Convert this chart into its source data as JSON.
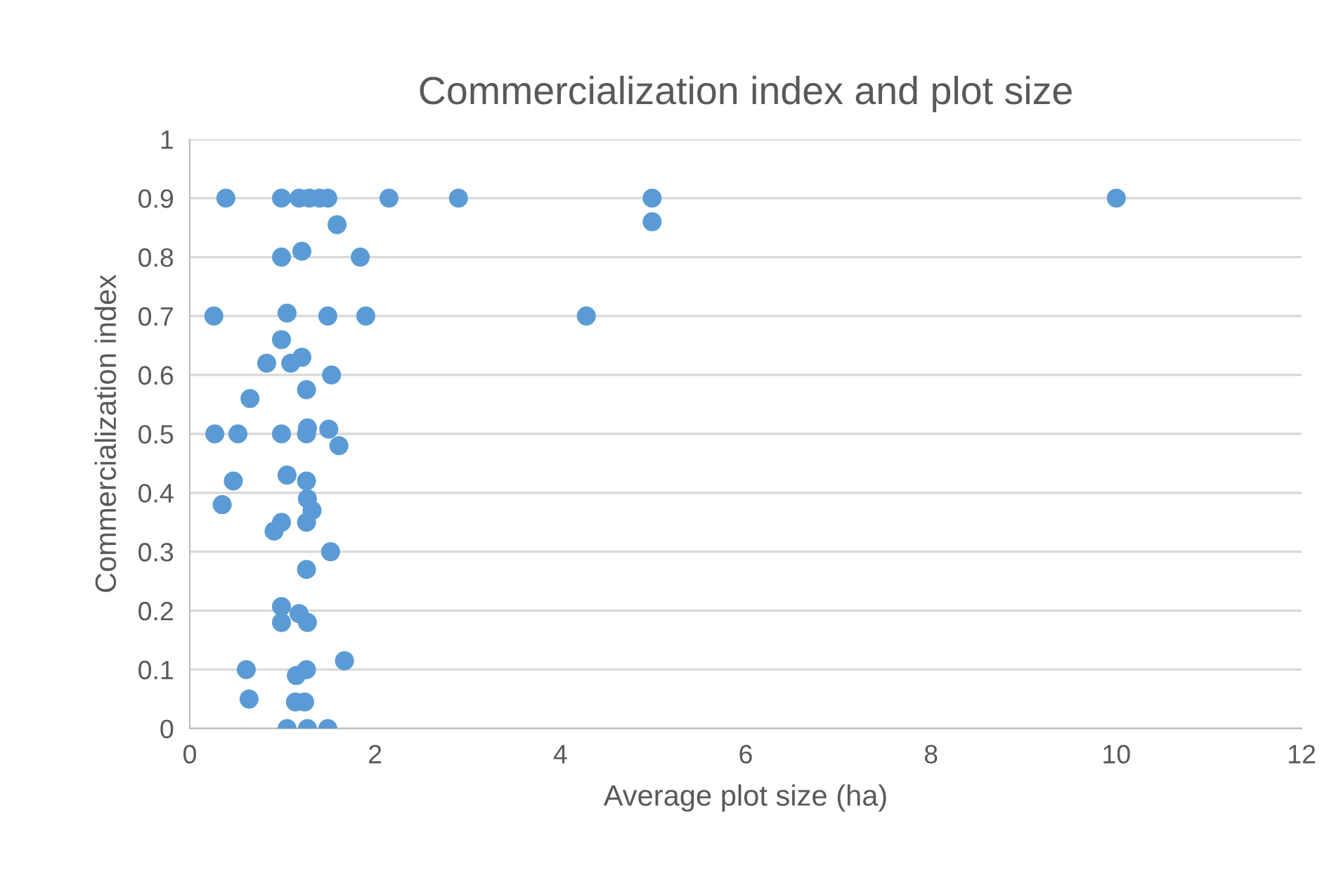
{
  "chart_data": {
    "type": "scatter",
    "title": "Commercialization index and plot size",
    "xlabel": "Average plot size (ha)",
    "ylabel": "Commercialization index",
    "xlim": [
      0,
      12
    ],
    "xticks": [
      0,
      2,
      4,
      6,
      8,
      10,
      12
    ],
    "ylim": [
      0,
      1
    ],
    "yticks": [
      0,
      {
        "value": 0.1,
        "label": "0.1"
      },
      {
        "value": 0.2,
        "label": "0.2"
      },
      {
        "value": 0.3,
        "label": "0.3"
      },
      {
        "value": 0.4,
        "label": "0.4"
      },
      {
        "value": 0.5,
        "label": "0.5"
      },
      {
        "value": 0.6,
        "label": "0.6"
      },
      {
        "value": 0.7,
        "label": "0.7"
      },
      {
        "value": 0.8,
        "label": "0.8"
      },
      {
        "value": 0.9,
        "label": "0.9"
      },
      1
    ],
    "grid": "y",
    "marker": "circle",
    "series": [
      {
        "color": "#5b9bd5",
        "x": [
          0.39,
          0.99,
          1.18,
          1.29,
          1.4,
          1.49,
          2.15,
          2.9,
          4.99,
          10,
          1.59,
          0.99,
          1.21,
          1.84,
          0.26,
          1.05,
          1.49,
          1.9,
          4.28,
          0.99,
          0.83,
          1.09,
          1.21,
          1.53,
          1.26,
          0.65,
          0.27,
          0.52,
          0.99,
          1.26,
          1.27,
          1.5,
          1.61,
          1.05,
          0.47,
          1.26,
          1.27,
          1.32,
          0.35,
          0.99,
          1.26,
          0.91,
          1.52,
          1.26,
          0.99,
          0.99,
          1.18,
          1.27,
          1.67,
          0.61,
          1.26,
          1.15,
          0.64,
          1.14,
          1.24,
          1.05,
          1.27,
          1.49,
          4.99
        ],
        "values": [
          0.9,
          0.9,
          0.9,
          0.9,
          0.9,
          0.9,
          0.9,
          0.9,
          0.9,
          0.9,
          0.855,
          0.8,
          0.81,
          0.8,
          0.7,
          0.705,
          0.7,
          0.7,
          0.7,
          0.66,
          0.62,
          0.62,
          0.63,
          0.6,
          0.575,
          0.56,
          0.5,
          0.5,
          0.5,
          0.5,
          0.51,
          0.508,
          0.48,
          0.43,
          0.42,
          0.42,
          0.39,
          0.37,
          0.38,
          0.35,
          0.35,
          0.335,
          0.3,
          0.27,
          0.207,
          0.18,
          0.195,
          0.18,
          0.115,
          0.1,
          0.1,
          0.09,
          0.05,
          0.045,
          0.045,
          0,
          0,
          0,
          0.86
        ]
      }
    ]
  }
}
